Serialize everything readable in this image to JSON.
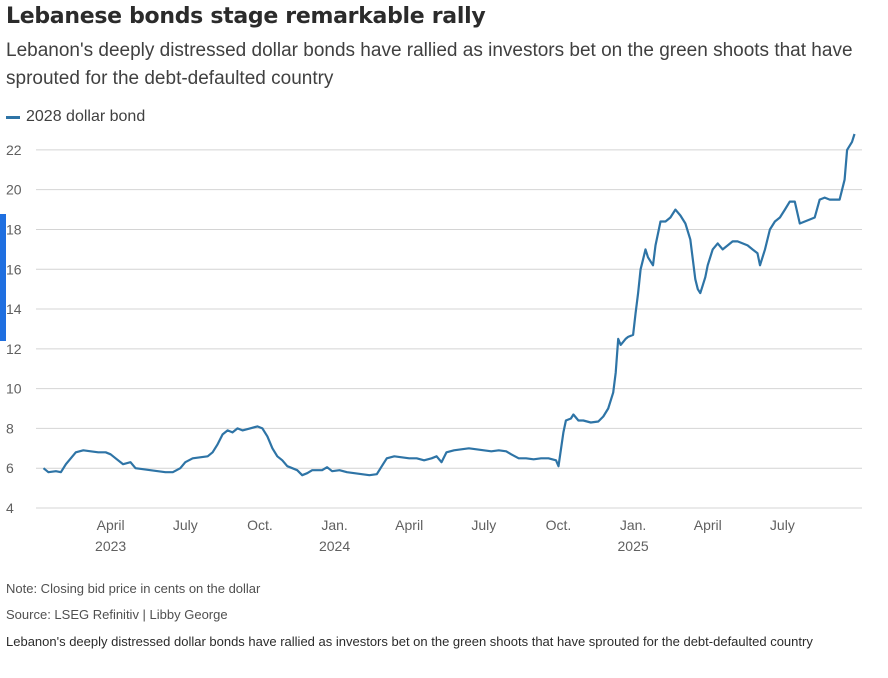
{
  "header": {
    "title": "Lebanese bonds stage remarkable rally",
    "subtitle": "Lebanon's deeply distressed dollar bonds have rallied as investors bet on the green shoots that have sprouted for the debt-defaulted country"
  },
  "footer": {
    "note": "Note: Closing bid price in cents on the dollar",
    "source": "Source: LSEG Refinitiv | Libby George",
    "caption": "Lebanon's deeply distressed dollar bonds have rallied as investors bet on the green shoots that have sprouted for the debt-defaulted country"
  },
  "colors": {
    "line": "#2e74a6",
    "grid": "#d4d4d4",
    "accent_bar": "#1f6fe0"
  },
  "chart_data": {
    "type": "line",
    "ylim": [
      4,
      23
    ],
    "yticks": [
      4,
      6,
      8,
      10,
      12,
      14,
      16,
      18,
      20,
      22
    ],
    "grid": "horizontal",
    "legend_position": "top-left",
    "x_ticks": [
      {
        "m": 3.0,
        "label": "April",
        "year": "2023"
      },
      {
        "m": 6.0,
        "label": "July",
        "year": ""
      },
      {
        "m": 9.0,
        "label": "Oct.",
        "year": ""
      },
      {
        "m": 12.0,
        "label": "Jan.",
        "year": "2024"
      },
      {
        "m": 15.0,
        "label": "April",
        "year": ""
      },
      {
        "m": 18.0,
        "label": "July",
        "year": ""
      },
      {
        "m": 21.0,
        "label": "Oct.",
        "year": ""
      },
      {
        "m": 24.0,
        "label": "Jan.",
        "year": "2025"
      },
      {
        "m": 27.0,
        "label": "April",
        "year": ""
      },
      {
        "m": 30.0,
        "label": "July",
        "year": ""
      }
    ],
    "xlim": [
      0,
      33.2
    ],
    "series": [
      {
        "name": "2028 dollar bond",
        "points": [
          [
            0.3,
            6.0
          ],
          [
            0.5,
            5.8
          ],
          [
            0.8,
            5.85
          ],
          [
            1.0,
            5.8
          ],
          [
            1.2,
            6.2
          ],
          [
            1.4,
            6.5
          ],
          [
            1.6,
            6.8
          ],
          [
            1.9,
            6.9
          ],
          [
            2.2,
            6.85
          ],
          [
            2.5,
            6.8
          ],
          [
            2.8,
            6.8
          ],
          [
            3.0,
            6.7
          ],
          [
            3.2,
            6.5
          ],
          [
            3.5,
            6.2
          ],
          [
            3.8,
            6.3
          ],
          [
            4.0,
            6.0
          ],
          [
            4.3,
            5.95
          ],
          [
            4.6,
            5.9
          ],
          [
            4.9,
            5.85
          ],
          [
            5.2,
            5.8
          ],
          [
            5.5,
            5.8
          ],
          [
            5.8,
            6.0
          ],
          [
            6.0,
            6.3
          ],
          [
            6.3,
            6.5
          ],
          [
            6.6,
            6.55
          ],
          [
            6.9,
            6.6
          ],
          [
            7.1,
            6.8
          ],
          [
            7.3,
            7.2
          ],
          [
            7.5,
            7.7
          ],
          [
            7.7,
            7.9
          ],
          [
            7.9,
            7.8
          ],
          [
            8.1,
            8.0
          ],
          [
            8.3,
            7.9
          ],
          [
            8.6,
            8.0
          ],
          [
            8.9,
            8.1
          ],
          [
            9.1,
            8.0
          ],
          [
            9.3,
            7.6
          ],
          [
            9.5,
            7.0
          ],
          [
            9.7,
            6.6
          ],
          [
            9.9,
            6.4
          ],
          [
            10.1,
            6.1
          ],
          [
            10.3,
            6.0
          ],
          [
            10.5,
            5.9
          ],
          [
            10.7,
            5.65
          ],
          [
            10.9,
            5.75
          ],
          [
            11.1,
            5.9
          ],
          [
            11.3,
            5.9
          ],
          [
            11.5,
            5.9
          ],
          [
            11.7,
            6.05
          ],
          [
            11.9,
            5.85
          ],
          [
            12.2,
            5.9
          ],
          [
            12.5,
            5.8
          ],
          [
            12.8,
            5.75
          ],
          [
            13.1,
            5.7
          ],
          [
            13.4,
            5.65
          ],
          [
            13.7,
            5.7
          ],
          [
            13.9,
            6.1
          ],
          [
            14.1,
            6.5
          ],
          [
            14.4,
            6.6
          ],
          [
            14.7,
            6.55
          ],
          [
            15.0,
            6.5
          ],
          [
            15.3,
            6.5
          ],
          [
            15.6,
            6.4
          ],
          [
            15.9,
            6.5
          ],
          [
            16.1,
            6.6
          ],
          [
            16.3,
            6.3
          ],
          [
            16.5,
            6.8
          ],
          [
            16.8,
            6.9
          ],
          [
            17.1,
            6.95
          ],
          [
            17.4,
            7.0
          ],
          [
            17.7,
            6.95
          ],
          [
            18.0,
            6.9
          ],
          [
            18.3,
            6.85
          ],
          [
            18.6,
            6.9
          ],
          [
            18.9,
            6.85
          ],
          [
            19.1,
            6.7
          ],
          [
            19.4,
            6.5
          ],
          [
            19.7,
            6.5
          ],
          [
            20.0,
            6.45
          ],
          [
            20.3,
            6.5
          ],
          [
            20.6,
            6.5
          ],
          [
            20.9,
            6.4
          ],
          [
            21.0,
            6.1
          ],
          [
            21.2,
            7.8
          ],
          [
            21.3,
            8.4
          ],
          [
            21.5,
            8.5
          ],
          [
            21.6,
            8.7
          ],
          [
            21.8,
            8.4
          ],
          [
            22.0,
            8.4
          ],
          [
            22.3,
            8.3
          ],
          [
            22.6,
            8.35
          ],
          [
            22.8,
            8.6
          ],
          [
            23.0,
            9.0
          ],
          [
            23.2,
            9.8
          ],
          [
            23.3,
            10.8
          ],
          [
            23.4,
            12.5
          ],
          [
            23.5,
            12.2
          ],
          [
            23.7,
            12.5
          ],
          [
            23.8,
            12.6
          ],
          [
            24.0,
            12.7
          ],
          [
            24.1,
            13.8
          ],
          [
            24.2,
            14.8
          ],
          [
            24.3,
            16.0
          ],
          [
            24.4,
            16.5
          ],
          [
            24.5,
            17.0
          ],
          [
            24.6,
            16.6
          ],
          [
            24.8,
            16.2
          ],
          [
            24.9,
            17.2
          ],
          [
            25.0,
            17.8
          ],
          [
            25.1,
            18.4
          ],
          [
            25.3,
            18.4
          ],
          [
            25.5,
            18.6
          ],
          [
            25.7,
            19.0
          ],
          [
            25.9,
            18.7
          ],
          [
            26.1,
            18.3
          ],
          [
            26.3,
            17.5
          ],
          [
            26.4,
            16.5
          ],
          [
            26.5,
            15.5
          ],
          [
            26.6,
            15.0
          ],
          [
            26.7,
            14.8
          ],
          [
            26.8,
            15.2
          ],
          [
            26.9,
            15.6
          ],
          [
            27.0,
            16.2
          ],
          [
            27.2,
            17.0
          ],
          [
            27.4,
            17.3
          ],
          [
            27.6,
            17.0
          ],
          [
            27.8,
            17.2
          ],
          [
            28.0,
            17.4
          ],
          [
            28.2,
            17.4
          ],
          [
            28.4,
            17.3
          ],
          [
            28.6,
            17.2
          ],
          [
            28.8,
            17.0
          ],
          [
            29.0,
            16.8
          ],
          [
            29.1,
            16.2
          ],
          [
            29.3,
            17.0
          ],
          [
            29.5,
            18.0
          ],
          [
            29.7,
            18.4
          ],
          [
            29.9,
            18.6
          ],
          [
            30.1,
            19.0
          ],
          [
            30.3,
            19.4
          ],
          [
            30.5,
            19.4
          ],
          [
            30.7,
            18.3
          ],
          [
            30.9,
            18.4
          ],
          [
            31.1,
            18.5
          ],
          [
            31.3,
            18.6
          ],
          [
            31.5,
            19.5
          ],
          [
            31.7,
            19.6
          ],
          [
            31.9,
            19.5
          ],
          [
            32.1,
            19.5
          ],
          [
            32.3,
            19.5
          ],
          [
            32.5,
            20.5
          ],
          [
            32.6,
            22.0
          ],
          [
            32.8,
            22.4
          ],
          [
            32.9,
            22.8
          ]
        ]
      }
    ]
  }
}
